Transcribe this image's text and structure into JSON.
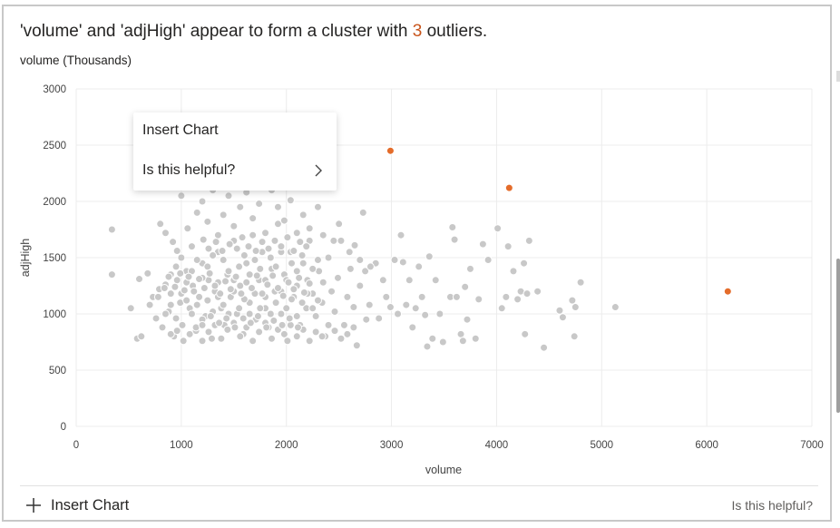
{
  "insight": {
    "prefix": "'volume' and 'adjHigh' appear to form a cluster with ",
    "count": "3",
    "suffix": " outliers."
  },
  "menu": {
    "insert_chart": "Insert Chart",
    "is_helpful": "Is this helpful?"
  },
  "footer": {
    "insert_chart": "Insert Chart",
    "is_helpful": "Is this helpful?"
  },
  "colors": {
    "cluster": "#c8c8c8",
    "outlier": "#e46c2a",
    "accent_text": "#c8541b"
  },
  "chart_data": {
    "type": "scatter",
    "title": "",
    "unit_label": "volume (Thousands)",
    "xlabel": "volume",
    "ylabel": "adjHigh",
    "xlim": [
      0,
      7000
    ],
    "ylim": [
      0,
      3000
    ],
    "x_ticks": [
      "0",
      "1000",
      "2000",
      "3000",
      "4000",
      "5000",
      "6000",
      "7000"
    ],
    "y_ticks": [
      "0",
      "500",
      "1000",
      "1500",
      "2000",
      "2500",
      "3000"
    ],
    "grid": true,
    "legend": "none",
    "outliers": [
      {
        "x": 2990,
        "y": 2450
      },
      {
        "x": 4120,
        "y": 2120
      },
      {
        "x": 6200,
        "y": 1200
      }
    ],
    "points": [
      [
        340,
        1750
      ],
      [
        340,
        1350
      ],
      [
        520,
        1050
      ],
      [
        580,
        780
      ],
      [
        620,
        800
      ],
      [
        600,
        1310
      ],
      [
        680,
        1360
      ],
      [
        700,
        1080
      ],
      [
        730,
        1150
      ],
      [
        760,
        960
      ],
      [
        790,
        1220
      ],
      [
        820,
        880
      ],
      [
        850,
        1260
      ],
      [
        880,
        1020
      ],
      [
        900,
        1180
      ],
      [
        930,
        800
      ],
      [
        960,
        1300
      ],
      [
        990,
        1100
      ],
      [
        1010,
        900
      ],
      [
        1050,
        1380
      ],
      [
        1080,
        1050
      ],
      [
        1110,
        1250
      ],
      [
        1140,
        850
      ],
      [
        1170,
        1150
      ],
      [
        1200,
        1450
      ],
      [
        1230,
        980
      ],
      [
        1260,
        1300
      ],
      [
        1290,
        780
      ],
      [
        1320,
        1200
      ],
      [
        1350,
        1550
      ],
      [
        1380,
        1050
      ],
      [
        1410,
        900
      ],
      [
        1440,
        1350
      ],
      [
        1470,
        1150
      ],
      [
        1500,
        1650
      ],
      [
        1530,
        1000
      ],
      [
        1560,
        1250
      ],
      [
        1590,
        820
      ],
      [
        1620,
        1450
      ],
      [
        1650,
        1100
      ],
      [
        1680,
        1700
      ],
      [
        1710,
        950
      ],
      [
        1740,
        1300
      ],
      [
        1770,
        1550
      ],
      [
        1800,
        1050
      ],
      [
        1830,
        880
      ],
      [
        1860,
        1400
      ],
      [
        1890,
        1200
      ],
      [
        1920,
        1800
      ],
      [
        1950,
        1000
      ],
      [
        1980,
        1350
      ],
      [
        2010,
        760
      ],
      [
        2040,
        1550
      ],
      [
        2070,
        1150
      ],
      [
        2100,
        1250
      ],
      [
        2130,
        900
      ],
      [
        2160,
        1450
      ],
      [
        2190,
        1050
      ],
      [
        2220,
        1650
      ],
      [
        2250,
        1180
      ],
      [
        2280,
        980
      ],
      [
        2310,
        1380
      ],
      [
        2340,
        1100
      ],
      [
        2370,
        800
      ],
      [
        2400,
        1500
      ],
      [
        2430,
        1200
      ],
      [
        2460,
        1020
      ],
      [
        2490,
        1320
      ],
      [
        2520,
        1650
      ],
      [
        2550,
        900
      ],
      [
        2580,
        1150
      ],
      [
        2610,
        1400
      ],
      [
        2640,
        1060
      ],
      [
        2670,
        720
      ],
      [
        2700,
        1250
      ],
      [
        2730,
        1900
      ],
      [
        2760,
        950
      ],
      [
        2790,
        1080
      ],
      [
        2850,
        1450
      ],
      [
        2880,
        960
      ],
      [
        2920,
        1300
      ],
      [
        2950,
        1150
      ],
      [
        2990,
        1060
      ],
      [
        3030,
        1480
      ],
      [
        3060,
        1000
      ],
      [
        3090,
        1700
      ],
      [
        3110,
        1460
      ],
      [
        3140,
        1080
      ],
      [
        3170,
        1300
      ],
      [
        3200,
        880
      ],
      [
        3230,
        1050
      ],
      [
        3260,
        1420
      ],
      [
        3290,
        1150
      ],
      [
        3320,
        990
      ],
      [
        3340,
        710
      ],
      [
        3360,
        1510
      ],
      [
        3390,
        780
      ],
      [
        3420,
        1300
      ],
      [
        3460,
        1000
      ],
      [
        3490,
        750
      ],
      [
        3560,
        1150
      ],
      [
        3580,
        1770
      ],
      [
        3600,
        1660
      ],
      [
        3620,
        1150
      ],
      [
        3660,
        820
      ],
      [
        3680,
        760
      ],
      [
        3700,
        1240
      ],
      [
        3720,
        950
      ],
      [
        3750,
        1400
      ],
      [
        3800,
        780
      ],
      [
        3830,
        1130
      ],
      [
        3870,
        1620
      ],
      [
        3920,
        1480
      ],
      [
        4010,
        1760
      ],
      [
        4050,
        1050
      ],
      [
        4090,
        1150
      ],
      [
        4110,
        1600
      ],
      [
        4160,
        1380
      ],
      [
        4200,
        1130
      ],
      [
        4230,
        1200
      ],
      [
        4260,
        1450
      ],
      [
        4270,
        820
      ],
      [
        4290,
        1180
      ],
      [
        4310,
        1650
      ],
      [
        4390,
        1200
      ],
      [
        4450,
        700
      ],
      [
        4600,
        1030
      ],
      [
        4630,
        970
      ],
      [
        4720,
        1120
      ],
      [
        4750,
        1060
      ],
      [
        4740,
        800
      ],
      [
        4800,
        1280
      ],
      [
        5130,
        1060
      ],
      [
        800,
        1800
      ],
      [
        850,
        1720
      ],
      [
        920,
        1640
      ],
      [
        960,
        1560
      ],
      [
        1000,
        2050
      ],
      [
        1060,
        1760
      ],
      [
        1100,
        1600
      ],
      [
        1150,
        1900
      ],
      [
        1200,
        2000
      ],
      [
        1250,
        1820
      ],
      [
        1300,
        2100
      ],
      [
        1350,
        1700
      ],
      [
        1400,
        1880
      ],
      [
        1450,
        2050
      ],
      [
        1500,
        1780
      ],
      [
        1560,
        1950
      ],
      [
        1620,
        2080
      ],
      [
        1680,
        1850
      ],
      [
        1740,
        1980
      ],
      [
        1800,
        1720
      ],
      [
        1860,
        2100
      ],
      [
        1920,
        1950
      ],
      [
        1980,
        1830
      ],
      [
        2040,
        2010
      ],
      [
        2100,
        1720
      ],
      [
        2160,
        1880
      ],
      [
        2220,
        1760
      ],
      [
        2300,
        1950
      ],
      [
        2350,
        1700
      ],
      [
        2450,
        1650
      ],
      [
        2500,
        1800
      ],
      [
        2600,
        1550
      ],
      [
        2650,
        1610
      ],
      [
        2700,
        1480
      ],
      [
        2750,
        1380
      ],
      [
        2800,
        1420
      ],
      [
        900,
        1350
      ],
      [
        950,
        1420
      ],
      [
        1000,
        1500
      ],
      [
        1050,
        1280
      ],
      [
        1100,
        1380
      ],
      [
        1150,
        1480
      ],
      [
        1200,
        1320
      ],
      [
        1250,
        1420
      ],
      [
        1300,
        1520
      ],
      [
        1350,
        1280
      ],
      [
        1400,
        1480
      ],
      [
        1450,
        1380
      ],
      [
        1500,
        1300
      ],
      [
        1550,
        1420
      ],
      [
        1600,
        1520
      ],
      [
        1650,
        1350
      ],
      [
        1700,
        1480
      ],
      [
        1750,
        1400
      ],
      [
        1800,
        1300
      ],
      [
        1850,
        1500
      ],
      [
        1900,
        1420
      ],
      [
        1950,
        1550
      ],
      [
        2000,
        1300
      ],
      [
        2050,
        1450
      ],
      [
        2100,
        1380
      ],
      [
        2150,
        1520
      ],
      [
        2200,
        1300
      ],
      [
        2250,
        1400
      ],
      [
        2300,
        1480
      ],
      [
        2350,
        1280
      ],
      [
        850,
        1000
      ],
      [
        900,
        1080
      ],
      [
        950,
        960
      ],
      [
        1000,
        1180
      ],
      [
        1050,
        1120
      ],
      [
        1100,
        1000
      ],
      [
        1150,
        1080
      ],
      [
        1200,
        950
      ],
      [
        1250,
        1120
      ],
      [
        1300,
        1020
      ],
      [
        1350,
        1150
      ],
      [
        1400,
        1080
      ],
      [
        1450,
        1000
      ],
      [
        1500,
        1200
      ],
      [
        1550,
        1050
      ],
      [
        1600,
        1130
      ],
      [
        1650,
        1000
      ],
      [
        1700,
        1180
      ],
      [
        1750,
        1050
      ],
      [
        1800,
        1150
      ],
      [
        1850,
        1000
      ],
      [
        1900,
        1100
      ],
      [
        1950,
        1200
      ],
      [
        2000,
        1050
      ],
      [
        2050,
        1130
      ],
      [
        2100,
        980
      ],
      [
        2150,
        1100
      ],
      [
        2200,
        1180
      ],
      [
        2250,
        1050
      ],
      [
        2300,
        1120
      ],
      [
        900,
        820
      ],
      [
        960,
        850
      ],
      [
        1020,
        760
      ],
      [
        1080,
        820
      ],
      [
        1140,
        880
      ],
      [
        1200,
        760
      ],
      [
        1260,
        840
      ],
      [
        1320,
        900
      ],
      [
        1380,
        780
      ],
      [
        1440,
        860
      ],
      [
        1500,
        920
      ],
      [
        1560,
        800
      ],
      [
        1620,
        880
      ],
      [
        1680,
        760
      ],
      [
        1740,
        840
      ],
      [
        1800,
        920
      ],
      [
        1860,
        780
      ],
      [
        1920,
        860
      ],
      [
        1980,
        820
      ],
      [
        2040,
        900
      ],
      [
        2100,
        800
      ],
      [
        2160,
        860
      ],
      [
        2220,
        760
      ],
      [
        2280,
        840
      ],
      [
        2340,
        800
      ],
      [
        2400,
        900
      ],
      [
        2460,
        850
      ],
      [
        2520,
        780
      ],
      [
        2580,
        820
      ],
      [
        2640,
        880
      ],
      [
        780,
        1150
      ],
      [
        840,
        1230
      ],
      [
        880,
        1330
      ],
      [
        940,
        1240
      ],
      [
        990,
        1360
      ],
      [
        1030,
        1210
      ],
      [
        1070,
        1330
      ],
      [
        1120,
        1200
      ],
      [
        1170,
        1310
      ],
      [
        1220,
        1230
      ],
      [
        1270,
        1360
      ],
      [
        1320,
        1250
      ],
      [
        1370,
        1180
      ],
      [
        1420,
        1290
      ],
      [
        1470,
        1220
      ],
      [
        1520,
        1330
      ],
      [
        1570,
        1180
      ],
      [
        1620,
        1280
      ],
      [
        1670,
        1230
      ],
      [
        1720,
        1340
      ],
      [
        1770,
        1180
      ],
      [
        1820,
        1260
      ],
      [
        1870,
        1340
      ],
      [
        1920,
        1230
      ],
      [
        1970,
        1160
      ],
      [
        2020,
        1280
      ],
      [
        2070,
        1220
      ],
      [
        2120,
        1320
      ],
      [
        2170,
        1190
      ],
      [
        2220,
        1270
      ],
      [
        1210,
        1660
      ],
      [
        1260,
        1580
      ],
      [
        1330,
        1640
      ],
      [
        1390,
        1560
      ],
      [
        1460,
        1620
      ],
      [
        1530,
        1580
      ],
      [
        1580,
        1680
      ],
      [
        1640,
        1600
      ],
      [
        1710,
        1560
      ],
      [
        1770,
        1640
      ],
      [
        1830,
        1580
      ],
      [
        1890,
        1650
      ],
      [
        1950,
        1600
      ],
      [
        2010,
        1680
      ],
      [
        2070,
        1560
      ],
      [
        2130,
        1640
      ],
      [
        2190,
        1600
      ],
      [
        1200,
        900
      ],
      [
        1280,
        980
      ],
      [
        1360,
        920
      ],
      [
        1430,
        960
      ],
      [
        1510,
        880
      ],
      [
        1590,
        960
      ],
      [
        1660,
        920
      ],
      [
        1730,
        980
      ],
      [
        1810,
        880
      ],
      [
        1880,
        940
      ],
      [
        1960,
        900
      ],
      [
        2030,
        960
      ],
      [
        2110,
        880
      ]
    ]
  }
}
